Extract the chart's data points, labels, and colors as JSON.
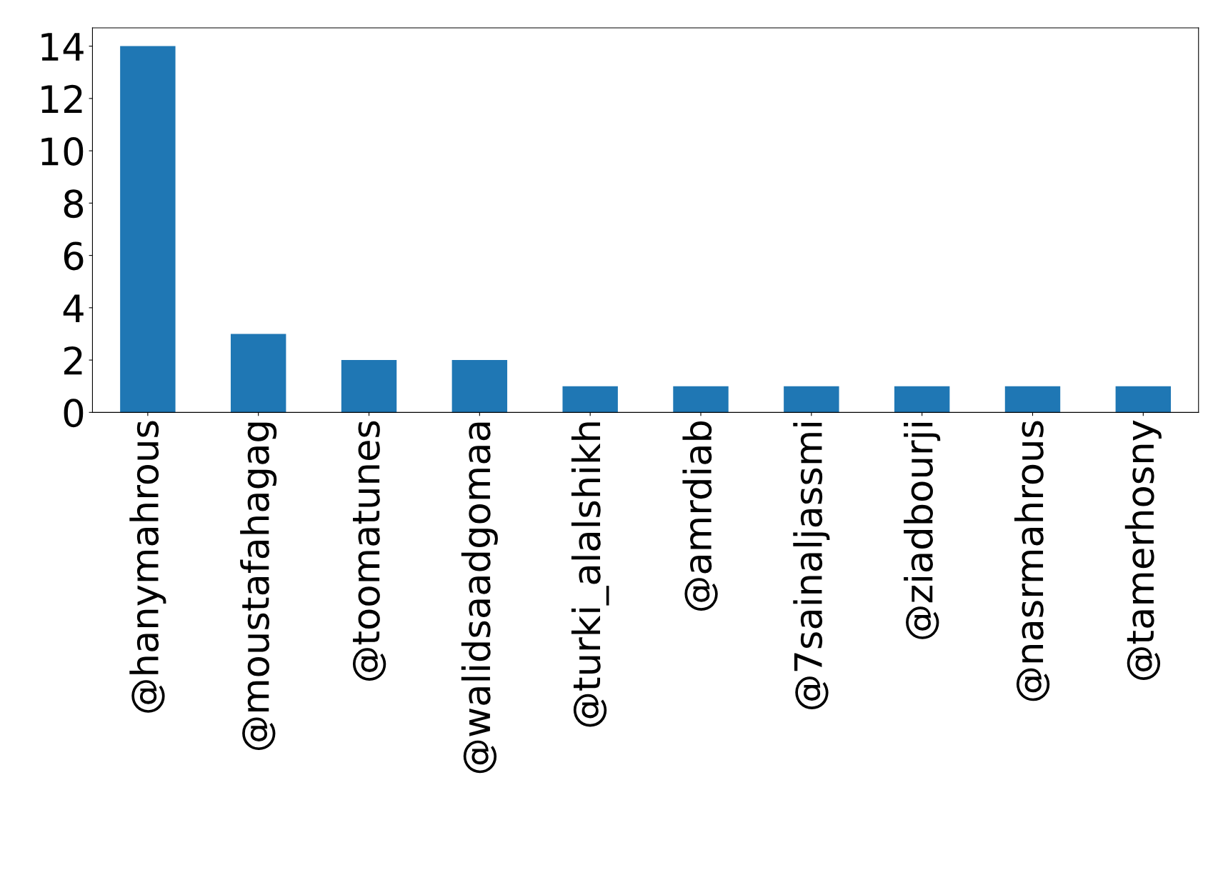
{
  "chart_data": {
    "type": "bar",
    "categories": [
      "@hanymahrous",
      "@moustafahagag",
      "@toomatunes",
      "@walidsaadgomaa",
      "@turki_alalshikh",
      "@amrdiab",
      "@7sainaljassmi",
      "@ziadbourji",
      "@nasrmahrous",
      "@tamerhosny"
    ],
    "values": [
      14,
      3,
      2,
      2,
      1,
      1,
      1,
      1,
      1,
      1
    ],
    "color": "#1f77b4",
    "ylim": [
      0,
      14.7
    ],
    "yticks": [
      0,
      2,
      4,
      6,
      8,
      10,
      12,
      14
    ],
    "grid": false,
    "legend": false
  }
}
